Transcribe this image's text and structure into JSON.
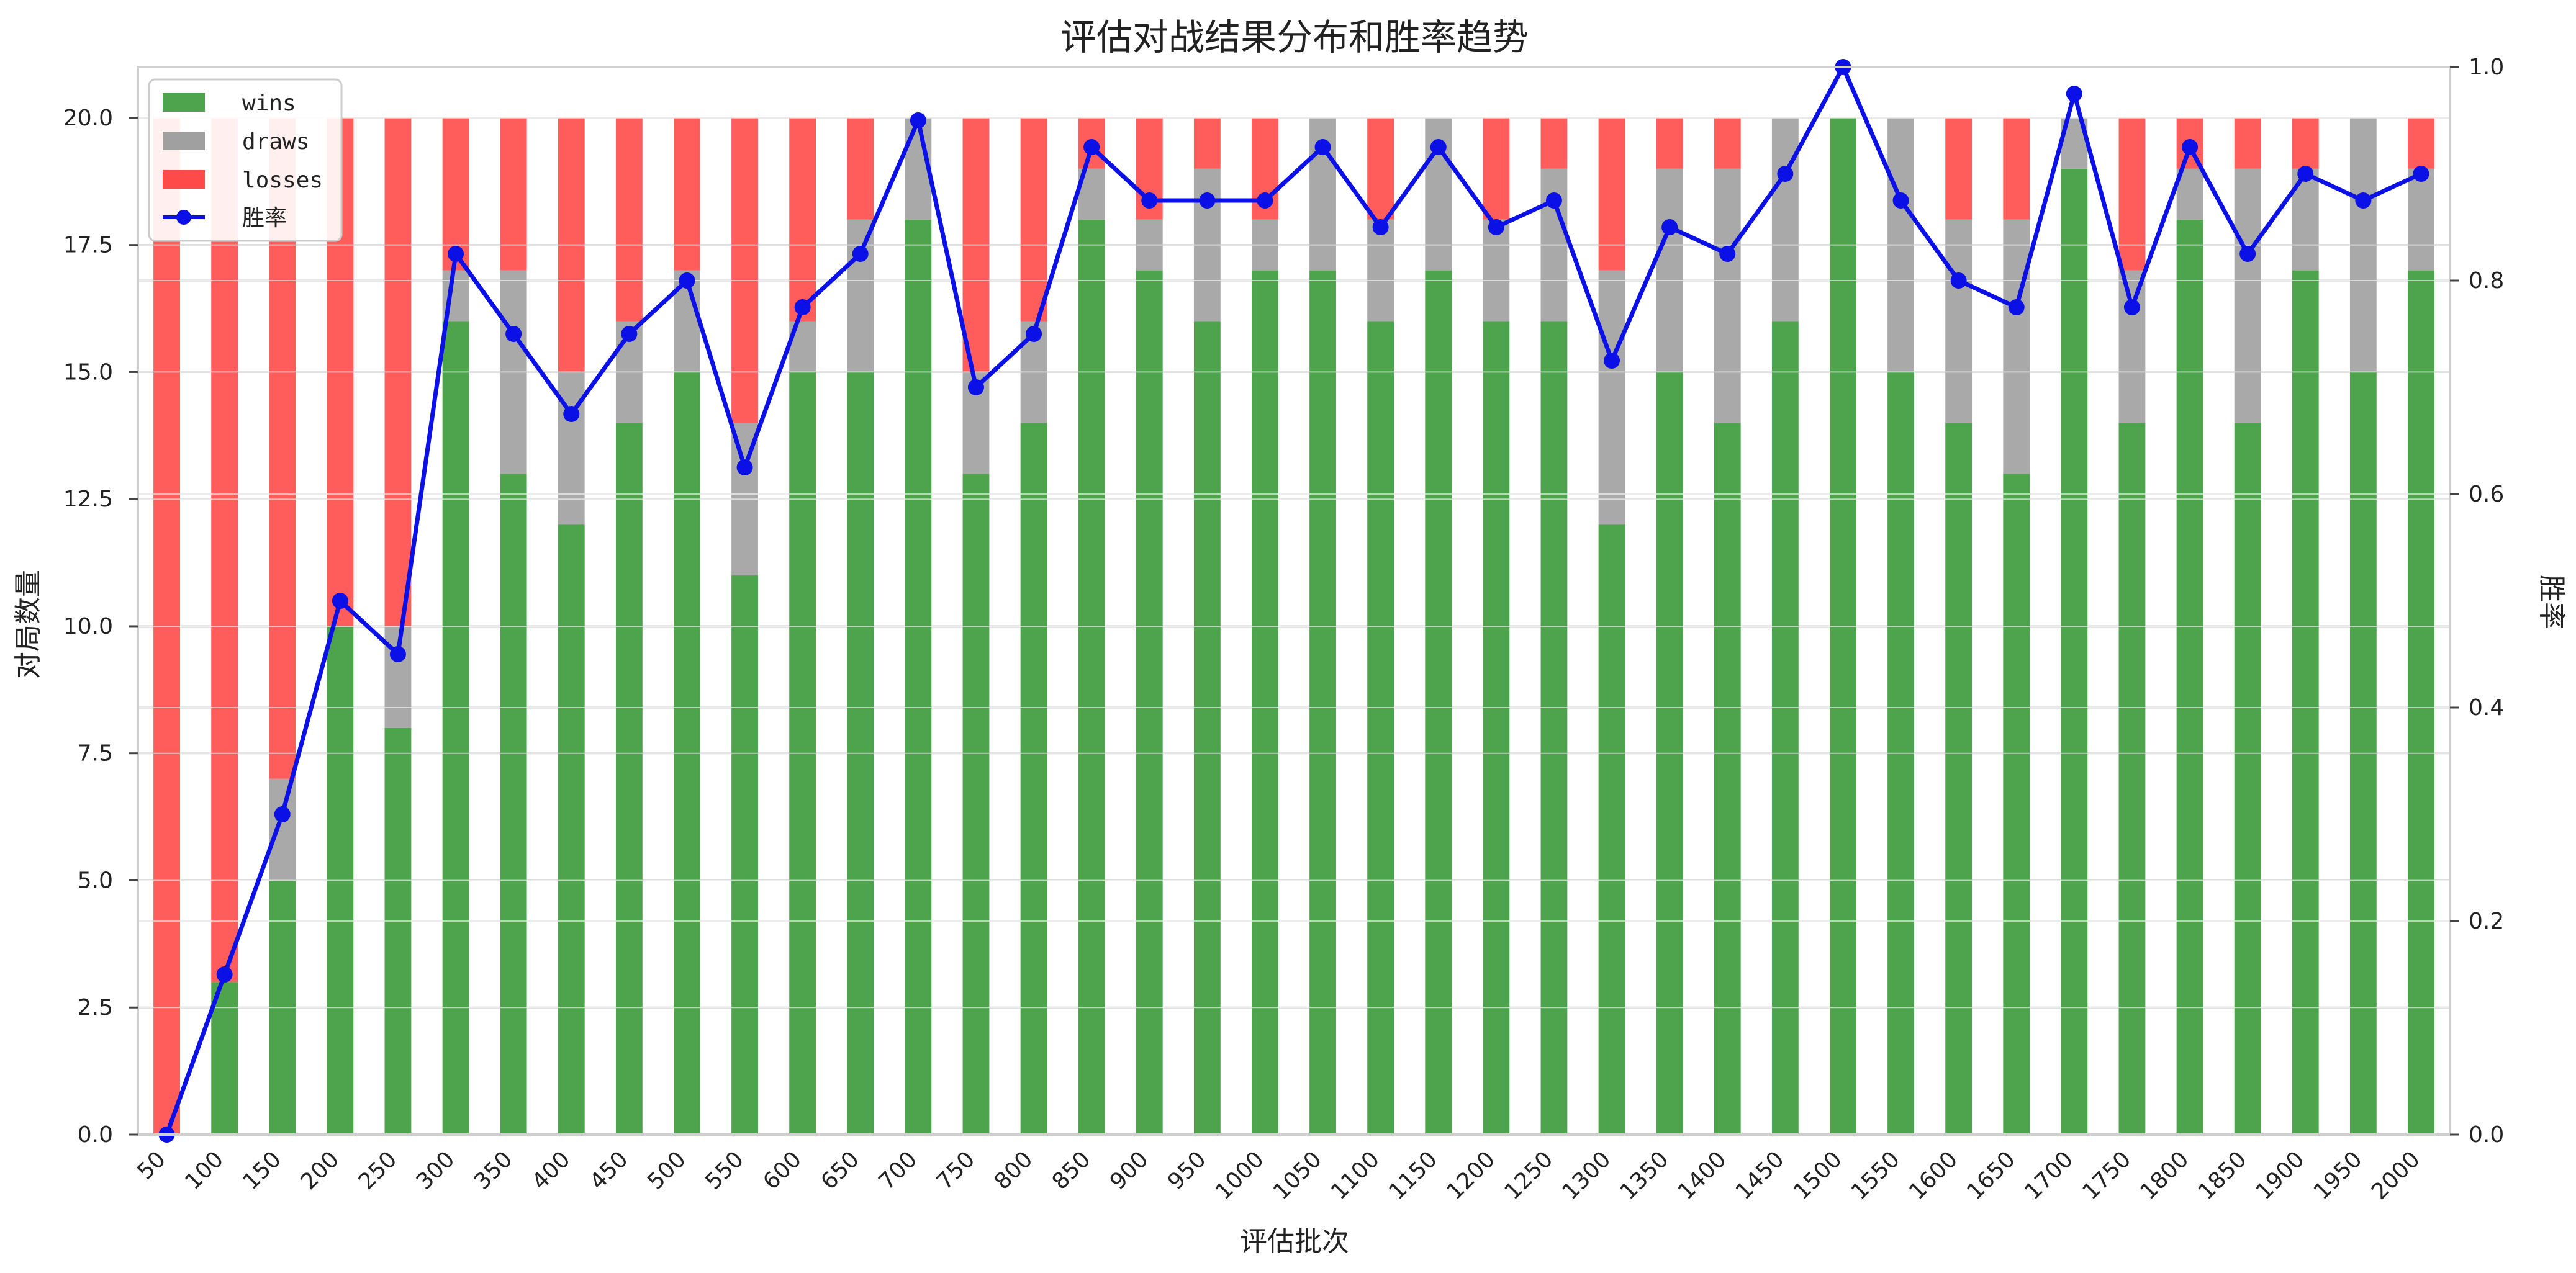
{
  "chart_data": {
    "type": "bar",
    "title": "评估对战结果分布和胜率趋势",
    "xlabel": "评估批次",
    "ylabel_left": "对局数量",
    "ylabel_right": "胜率",
    "ylim_left": [
      0,
      21
    ],
    "ylim_right": [
      0,
      1.0
    ],
    "yticks_left": [
      "0.0",
      "2.5",
      "5.0",
      "7.5",
      "10.0",
      "12.5",
      "15.0",
      "17.5",
      "20.0"
    ],
    "yticks_right": [
      "0.0",
      "0.2",
      "0.4",
      "0.6",
      "0.8",
      "1.0"
    ],
    "categories": [
      "50",
      "100",
      "150",
      "200",
      "250",
      "300",
      "350",
      "400",
      "450",
      "500",
      "550",
      "600",
      "650",
      "700",
      "750",
      "800",
      "850",
      "900",
      "950",
      "1000",
      "1050",
      "1100",
      "1150",
      "1200",
      "1250",
      "1300",
      "1350",
      "1400",
      "1450",
      "1500",
      "1550",
      "1600",
      "1650",
      "1700",
      "1750",
      "1800",
      "1850",
      "1900",
      "1950",
      "2000"
    ],
    "stacked_series": [
      {
        "name": "wins",
        "color": "#3a9a3a",
        "values": [
          0,
          3,
          5,
          10,
          8,
          16,
          13,
          12,
          14,
          15,
          11,
          15,
          15,
          18,
          13,
          14,
          18,
          17,
          16,
          17,
          17,
          16,
          17,
          16,
          16,
          12,
          15,
          14,
          16,
          20,
          15,
          14,
          13,
          19,
          14,
          18,
          14,
          17,
          15,
          17
        ]
      },
      {
        "name": "draws",
        "color": "#a0a0a0",
        "values": [
          0,
          0,
          2,
          0,
          2,
          1,
          4,
          3,
          2,
          2,
          3,
          1,
          3,
          2,
          2,
          2,
          1,
          1,
          3,
          1,
          3,
          2,
          3,
          2,
          3,
          5,
          4,
          5,
          4,
          0,
          5,
          4,
          5,
          1,
          3,
          1,
          5,
          2,
          5,
          2
        ]
      },
      {
        "name": "losses",
        "color": "#ff4a4a",
        "values": [
          20,
          17,
          13,
          10,
          10,
          3,
          3,
          5,
          4,
          3,
          6,
          4,
          2,
          0,
          5,
          4,
          1,
          2,
          1,
          2,
          0,
          2,
          0,
          2,
          1,
          3,
          1,
          1,
          0,
          0,
          0,
          2,
          2,
          0,
          3,
          1,
          1,
          1,
          0,
          1
        ]
      }
    ],
    "line_series": {
      "name": "胜率",
      "color": "#0a10e6",
      "axis": "right",
      "values": [
        0.0,
        0.15,
        0.3,
        0.5,
        0.45,
        0.825,
        0.75,
        0.675,
        0.75,
        0.8,
        0.625,
        0.775,
        0.825,
        0.95,
        0.7,
        0.75,
        0.925,
        0.875,
        0.875,
        0.875,
        0.925,
        0.85,
        0.925,
        0.85,
        0.875,
        0.725,
        0.85,
        0.825,
        0.9,
        1.0,
        0.875,
        0.8,
        0.775,
        0.975,
        0.775,
        0.925,
        0.825,
        0.9,
        0.875,
        0.9
      ]
    },
    "grid": true,
    "legend_position": "top-left"
  }
}
